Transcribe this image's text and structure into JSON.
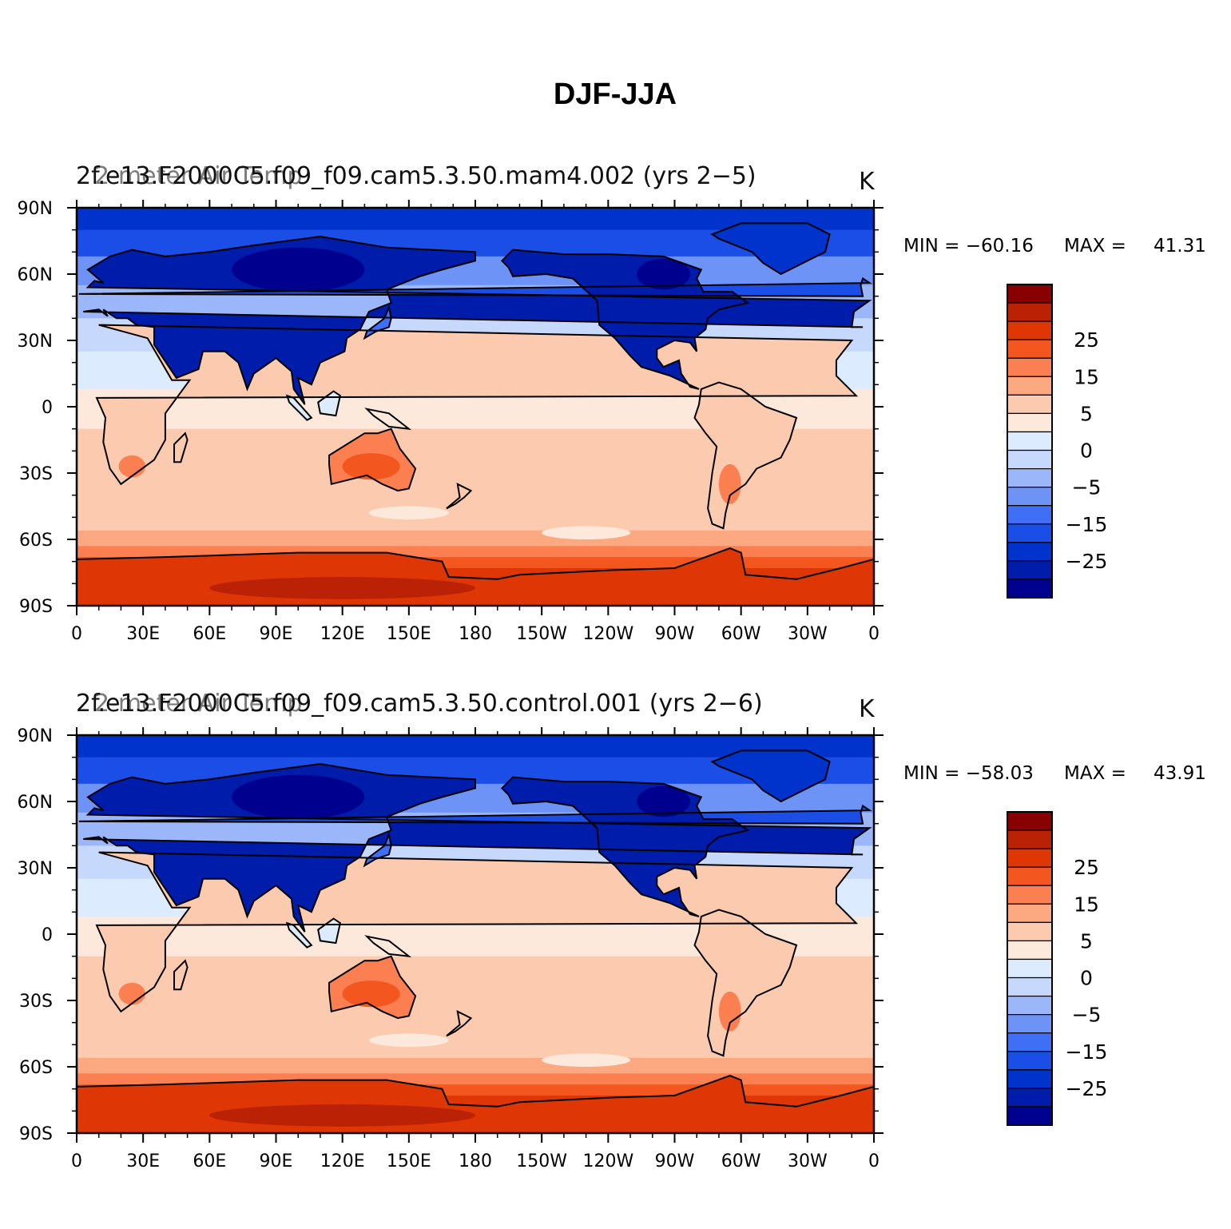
{
  "title": "DJF-JJA",
  "colors": [
    "#00008f",
    "#001caa",
    "#0033cc",
    "#1a4ee6",
    "#3f6ff5",
    "#6e93f7",
    "#9cb6fa",
    "#c6d8fc",
    "#dcebfe",
    "#fde9dc",
    "#fccaae",
    "#fca880",
    "#fb7f50",
    "#f3561f",
    "#df3606",
    "#bb2104",
    "#880000"
  ],
  "colorbar_labels": [
    {
      "text": "25",
      "index": 14
    },
    {
      "text": "15",
      "index": 12
    },
    {
      "text": "5",
      "index": 10
    },
    {
      "text": "0",
      "index": 8
    },
    {
      "text": "−5",
      "index": 6
    },
    {
      "text": "−15",
      "index": 4
    },
    {
      "text": "−25",
      "index": 2
    }
  ],
  "x_ticks": [
    "0",
    "30E",
    "60E",
    "90E",
    "120E",
    "150E",
    "180",
    "150W",
    "120W",
    "90W",
    "60W",
    "30W",
    "0"
  ],
  "y_ticks": [
    "90N",
    "60N",
    "30N",
    "0",
    "30S",
    "60S",
    "90S"
  ],
  "panels": [
    {
      "left_label": "2f.e13.F2000C5.f09_f09.cam5.3.50.mam4.002 (yrs 2−5)",
      "overlay_label": "2-meter Air Temp",
      "units": "K",
      "min_label": "MIN = −60.16",
      "max_label": "MAX =",
      "max_value": "41.31"
    },
    {
      "left_label": "2f.e13.F2000C5.f09_f09.cam5.3.50.control.001 (yrs 2−6)",
      "overlay_label": "2-meter Air Temp",
      "units": "K",
      "min_label": "MIN = −58.03",
      "max_label": "MAX =",
      "max_value": "43.91"
    }
  ],
  "chart_data": [
    {
      "type": "heatmap",
      "title": "2f.e13.F2000C5.f09_f09.cam5.3.50.mam4.002 (yrs 2−5)",
      "variable": "2-meter Air Temp",
      "units": "K",
      "min": -60.16,
      "max": 41.31,
      "x_ticks": [
        "0",
        "30E",
        "60E",
        "90E",
        "120E",
        "150E",
        "180",
        "150W",
        "120W",
        "90W",
        "60W",
        "30W",
        "0"
      ],
      "y_ticks": [
        "90N",
        "60N",
        "30N",
        "0",
        "30S",
        "60S",
        "90S"
      ],
      "colorbar_labels": [
        25,
        15,
        5,
        0,
        -5,
        -15,
        -25
      ],
      "projection": "cylindrical equidistant"
    },
    {
      "type": "heatmap",
      "title": "2f.e13.F2000C5.f09_f09.cam5.3.50.control.001 (yrs 2−6)",
      "variable": "2-meter Air Temp",
      "units": "K",
      "min": -58.03,
      "max": 43.91,
      "x_ticks": [
        "0",
        "30E",
        "60E",
        "90E",
        "120E",
        "150E",
        "180",
        "150W",
        "120W",
        "90W",
        "60W",
        "30W",
        "0"
      ],
      "y_ticks": [
        "90N",
        "60N",
        "30N",
        "0",
        "30S",
        "60S",
        "90S"
      ],
      "colorbar_labels": [
        25,
        15,
        5,
        0,
        -5,
        -15,
        -25
      ],
      "projection": "cylindrical equidistant"
    }
  ]
}
